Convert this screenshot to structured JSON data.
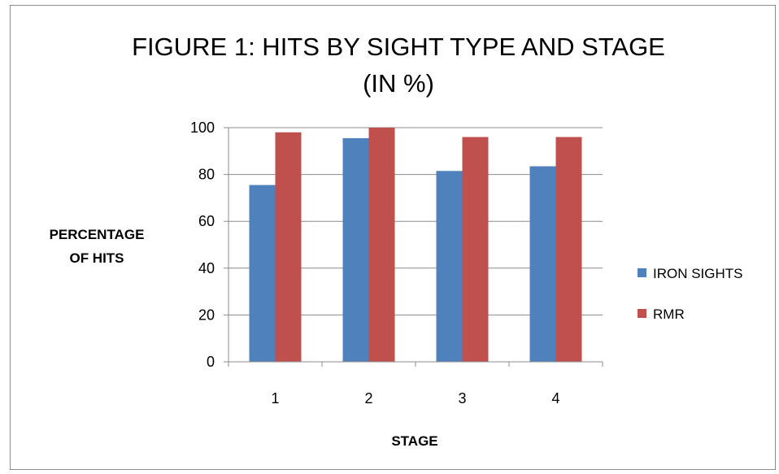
{
  "chart_data": {
    "type": "bar",
    "title": "FIGURE 1: HITS BY SIGHT TYPE AND STAGE",
    "subtitle": "(IN %)",
    "xlabel": "STAGE",
    "ylabel": [
      "PERCENTAGE",
      "OF HITS"
    ],
    "categories": [
      "1",
      "2",
      "3",
      "4"
    ],
    "series": [
      {
        "name": "IRON SIGHTS",
        "color": "#4f81bd",
        "values": [
          75.5,
          95.5,
          81.5,
          83.5
        ]
      },
      {
        "name": "RMR",
        "color": "#c0504d",
        "values": [
          98,
          100,
          96,
          96
        ]
      }
    ],
    "ylim": [
      0,
      100
    ],
    "yticks": [
      "0",
      "20",
      "40",
      "60",
      "80",
      "100"
    ],
    "grid": true,
    "legend_position": "right"
  }
}
